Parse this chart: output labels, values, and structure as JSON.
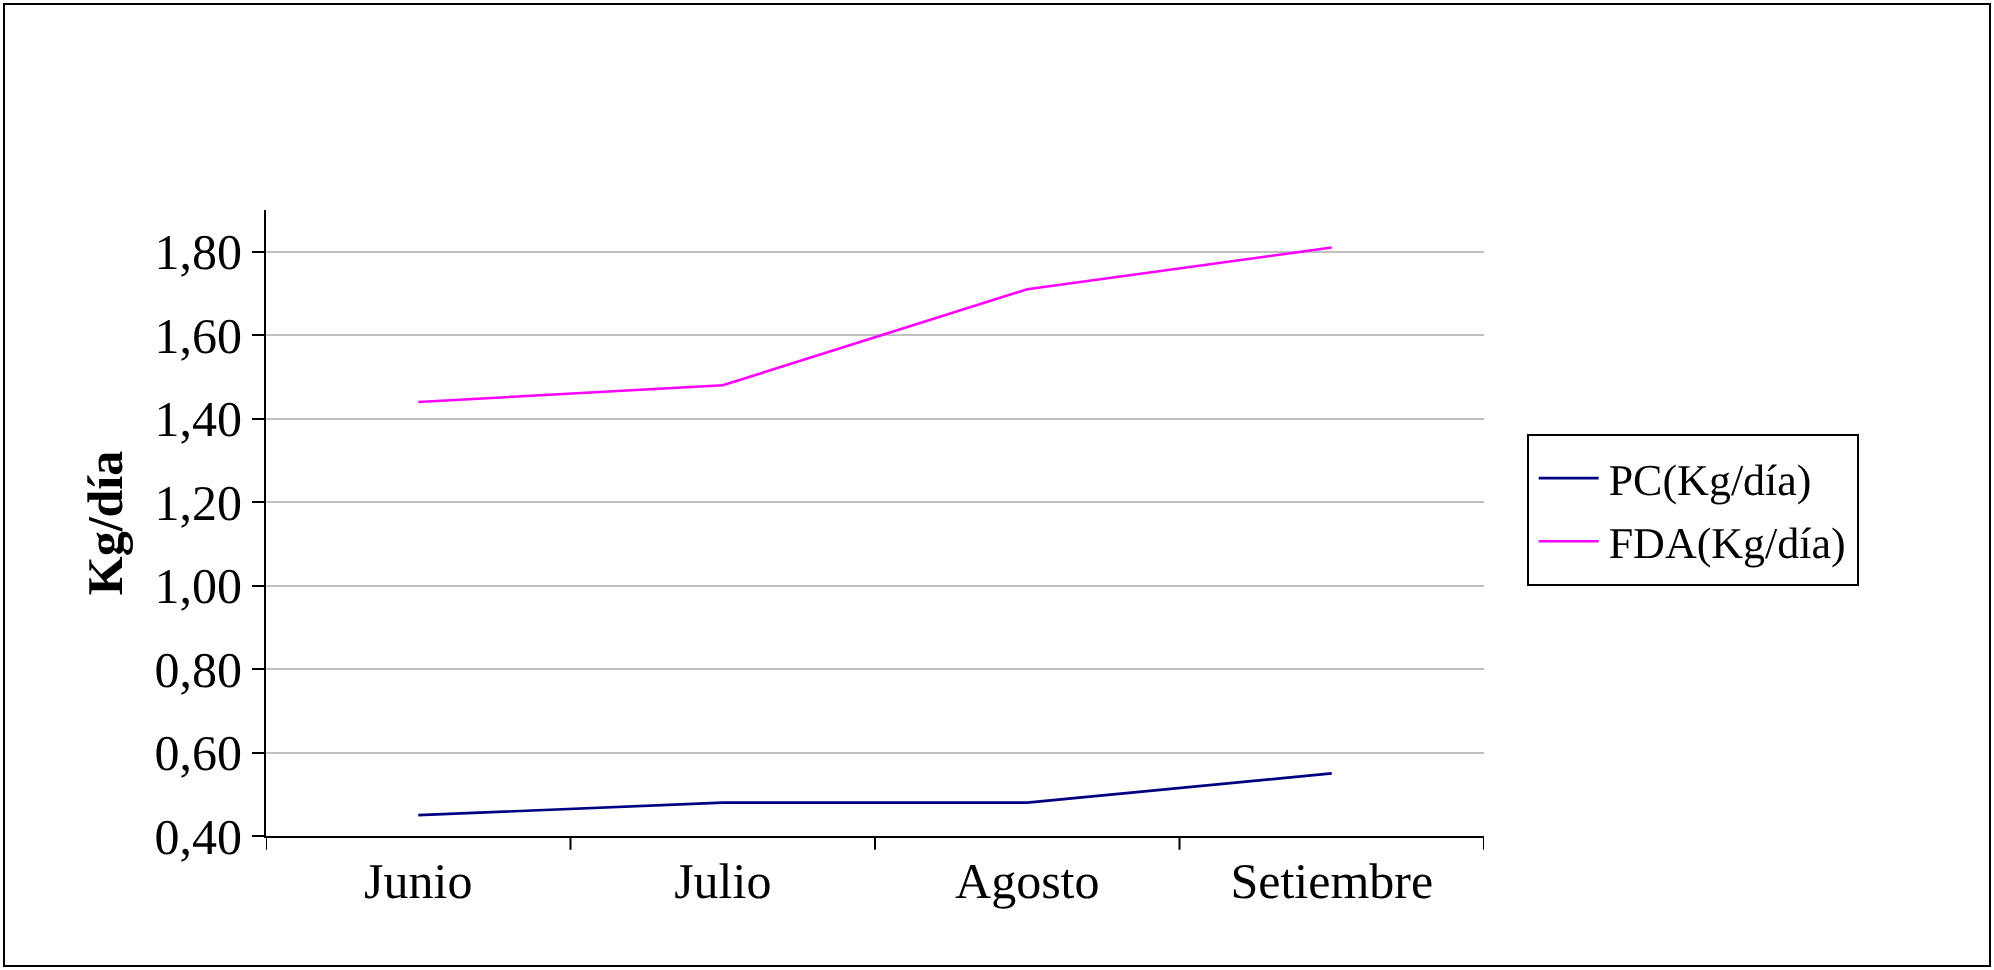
{
  "chart_data": {
    "type": "line",
    "categories": [
      "Junio",
      "Julio",
      "Agosto",
      "Setiembre"
    ],
    "ylabel": "Kg/día",
    "series": [
      {
        "name": "PC(Kg/día)",
        "color": "#000080",
        "values": [
          0.45,
          0.48,
          0.48,
          0.55
        ]
      },
      {
        "name": "FDA(Kg/día)",
        "color": "#ff00ff",
        "values": [
          1.44,
          1.48,
          1.71,
          1.81
        ]
      }
    ],
    "ylim": [
      0.4,
      1.9
    ],
    "yticks": [
      {
        "value": 0.4,
        "label": "0,40"
      },
      {
        "value": 0.6,
        "label": "0,60"
      },
      {
        "value": 0.8,
        "label": "0,80"
      },
      {
        "value": 1.0,
        "label": "1,00"
      },
      {
        "value": 1.2,
        "label": "1,20"
      },
      {
        "value": 1.4,
        "label": "1,40"
      },
      {
        "value": 1.6,
        "label": "1,60"
      },
      {
        "value": 1.8,
        "label": "1,80"
      }
    ],
    "grid": "y",
    "legend": "right",
    "marker": "none",
    "line_style": "solid"
  }
}
